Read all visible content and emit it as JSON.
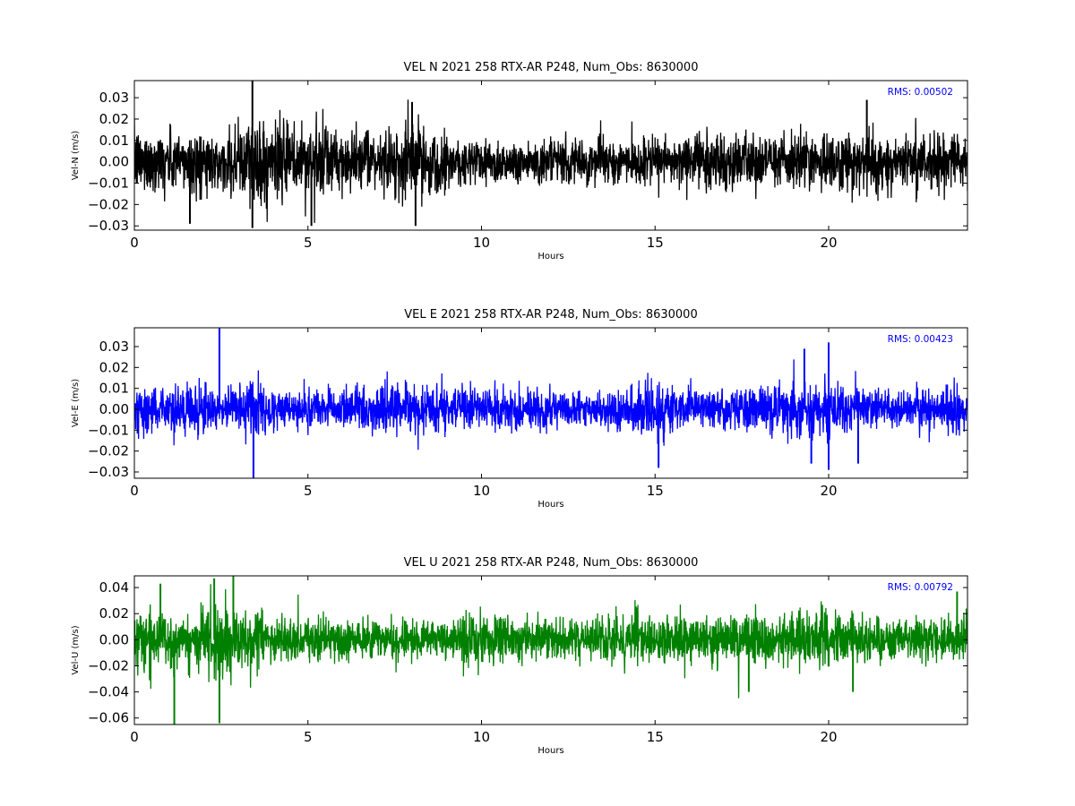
{
  "chart_data": [
    {
      "type": "line",
      "title": "VEL N 2021 258 RTX-AR  P248, Num_Obs: 8630000",
      "xlabel": "Hours",
      "ylabel": "Vel-N (m/s)",
      "xlim": [
        0,
        24
      ],
      "ylim": [
        -0.032,
        0.038
      ],
      "x_ticks": [
        0,
        5,
        10,
        15,
        20
      ],
      "y_ticks": [
        -0.03,
        -0.02,
        -0.01,
        0.0,
        0.01,
        0.02,
        0.03
      ],
      "y_tick_labels": [
        "−0.03",
        "−0.02",
        "−0.01",
        "0.00",
        "0.01",
        "0.02",
        "0.03"
      ],
      "color": "#000000",
      "rms_label": "RMS:  0.00502",
      "grid": false,
      "series": [
        {
          "hours": [
            0,
            1,
            2,
            2.5,
            3,
            3.5,
            4,
            5,
            6,
            7,
            7.5,
            8,
            9,
            10,
            11,
            12,
            13,
            14,
            15,
            15.5,
            16,
            17,
            18,
            19,
            20,
            21,
            22,
            23,
            24
          ],
          "envelope": [
            0.016,
            0.016,
            0.016,
            0.01,
            0.02,
            0.025,
            0.02,
            0.02,
            0.016,
            0.012,
            0.018,
            0.02,
            0.014,
            0.012,
            0.011,
            0.011,
            0.011,
            0.011,
            0.011,
            0.01,
            0.016,
            0.014,
            0.013,
            0.014,
            0.015,
            0.016,
            0.014,
            0.014,
            0.014
          ],
          "spikes": [
            [
              3.4,
              0.038
            ],
            [
              3.4,
              -0.031
            ],
            [
              1.6,
              -0.029
            ],
            [
              5.1,
              -0.03
            ],
            [
              8.1,
              -0.03
            ],
            [
              21.1,
              0.029
            ],
            [
              8.0,
              0.028
            ]
          ]
        }
      ]
    },
    {
      "type": "line",
      "title": "VEL E 2021 258 RTX-AR  P248, Num_Obs: 8630000",
      "xlabel": "Hours",
      "ylabel": "Vel-E (m/s)",
      "xlim": [
        0,
        24
      ],
      "ylim": [
        -0.033,
        0.039
      ],
      "x_ticks": [
        0,
        5,
        10,
        15,
        20
      ],
      "y_ticks": [
        -0.03,
        -0.02,
        -0.01,
        0.0,
        0.01,
        0.02,
        0.03
      ],
      "y_tick_labels": [
        "−0.03",
        "−0.02",
        "−0.01",
        "0.00",
        "0.01",
        "0.02",
        "0.03"
      ],
      "color": "#0000ff",
      "rms_label": "RMS:  0.00423",
      "grid": false,
      "series": [
        {
          "hours": [
            0,
            1,
            2,
            2.5,
            3,
            3.5,
            4,
            5,
            6,
            7,
            7.5,
            8,
            9,
            10,
            11,
            12,
            13,
            14,
            14.5,
            15,
            15.5,
            16,
            17,
            18,
            19,
            19.5,
            20,
            21,
            22,
            23,
            24
          ],
          "envelope": [
            0.012,
            0.012,
            0.012,
            0.009,
            0.011,
            0.016,
            0.011,
            0.01,
            0.01,
            0.011,
            0.013,
            0.012,
            0.011,
            0.01,
            0.01,
            0.009,
            0.009,
            0.01,
            0.015,
            0.017,
            0.012,
            0.01,
            0.01,
            0.011,
            0.014,
            0.016,
            0.012,
            0.012,
            0.01,
            0.011,
            0.011
          ],
          "spikes": [
            [
              2.45,
              0.039
            ],
            [
              3.43,
              -0.033
            ],
            [
              20.0,
              -0.029
            ],
            [
              20.0,
              0.032
            ],
            [
              15.1,
              -0.028
            ],
            [
              19.5,
              -0.026
            ],
            [
              20.85,
              -0.026
            ],
            [
              19.3,
              0.029
            ]
          ]
        }
      ]
    },
    {
      "type": "line",
      "title": "VEL U 2021 258 RTX-AR  P248, Num_Obs: 8630000",
      "xlabel": "Hours",
      "ylabel": "Vel-U (m/s)",
      "xlim": [
        0,
        24
      ],
      "ylim": [
        -0.065,
        0.049
      ],
      "x_ticks": [
        0,
        5,
        10,
        15,
        20
      ],
      "y_ticks": [
        -0.06,
        -0.04,
        -0.02,
        0.0,
        0.02,
        0.04
      ],
      "y_tick_labels": [
        "−0.06",
        "−0.04",
        "−0.02",
        "0.00",
        "0.02",
        "0.04"
      ],
      "color": "#008000",
      "rms_label": "RMS:  0.00792",
      "grid": false,
      "series": [
        {
          "hours": [
            0,
            0.5,
            1,
            1.5,
            2,
            2.5,
            3,
            3.5,
            4,
            5,
            6,
            7,
            8,
            9,
            10,
            11,
            12,
            13,
            14,
            14.5,
            15,
            16,
            17,
            18,
            19,
            20,
            21,
            22,
            23,
            24
          ],
          "envelope": [
            0.025,
            0.03,
            0.022,
            0.018,
            0.028,
            0.03,
            0.03,
            0.025,
            0.018,
            0.02,
            0.018,
            0.016,
            0.017,
            0.016,
            0.022,
            0.02,
            0.017,
            0.016,
            0.02,
            0.022,
            0.018,
            0.02,
            0.02,
            0.022,
            0.02,
            0.022,
            0.018,
            0.017,
            0.02,
            0.023
          ],
          "spikes": [
            [
              1.15,
              -0.065
            ],
            [
              2.45,
              -0.064
            ],
            [
              2.85,
              0.049
            ],
            [
              2.3,
              0.047
            ],
            [
              20.7,
              -0.04
            ],
            [
              17.7,
              -0.04
            ],
            [
              23.7,
              0.037
            ],
            [
              0.75,
              0.043
            ]
          ]
        }
      ]
    }
  ]
}
